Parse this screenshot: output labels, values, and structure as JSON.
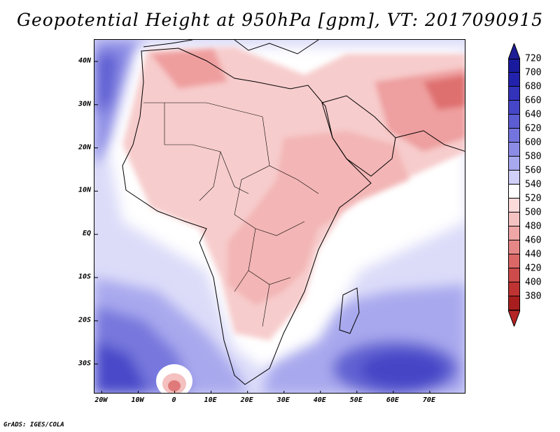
{
  "title": "Geopotential Height at 950hPa [gpm], VT: 2017090915",
  "credit": "GrADS: IGES/COLA",
  "map": {
    "lat_labels": [
      "40N",
      "30N",
      "20N",
      "10N",
      "EQ",
      "10S",
      "20S",
      "30S"
    ],
    "lon_labels": [
      "20W",
      "10W",
      "0",
      "10E",
      "20E",
      "30E",
      "40E",
      "50E",
      "60E",
      "70E"
    ],
    "lon_range": [
      -22,
      80
    ],
    "lat_range": [
      -37,
      45
    ]
  },
  "colorbar": {
    "labels": [
      "720",
      "700",
      "680",
      "660",
      "640",
      "620",
      "600",
      "580",
      "560",
      "540",
      "520",
      "500",
      "480",
      "460",
      "440",
      "420",
      "400",
      "380"
    ],
    "colors": [
      "#1a1a9e",
      "#2222ad",
      "#3232bb",
      "#4646c8",
      "#5c5cd3",
      "#7474de",
      "#8c8ce6",
      "#a8a8ee",
      "#cfcff8",
      "#ffffff",
      "#fbdada",
      "#f5c2c2",
      "#eea6a6",
      "#e58787",
      "#db6767",
      "#ce4b4b",
      "#bf3333",
      "#a81e1e"
    ],
    "top_arrow_color": "#1e1e96",
    "bottom_arrow_color": "#b52525"
  }
}
